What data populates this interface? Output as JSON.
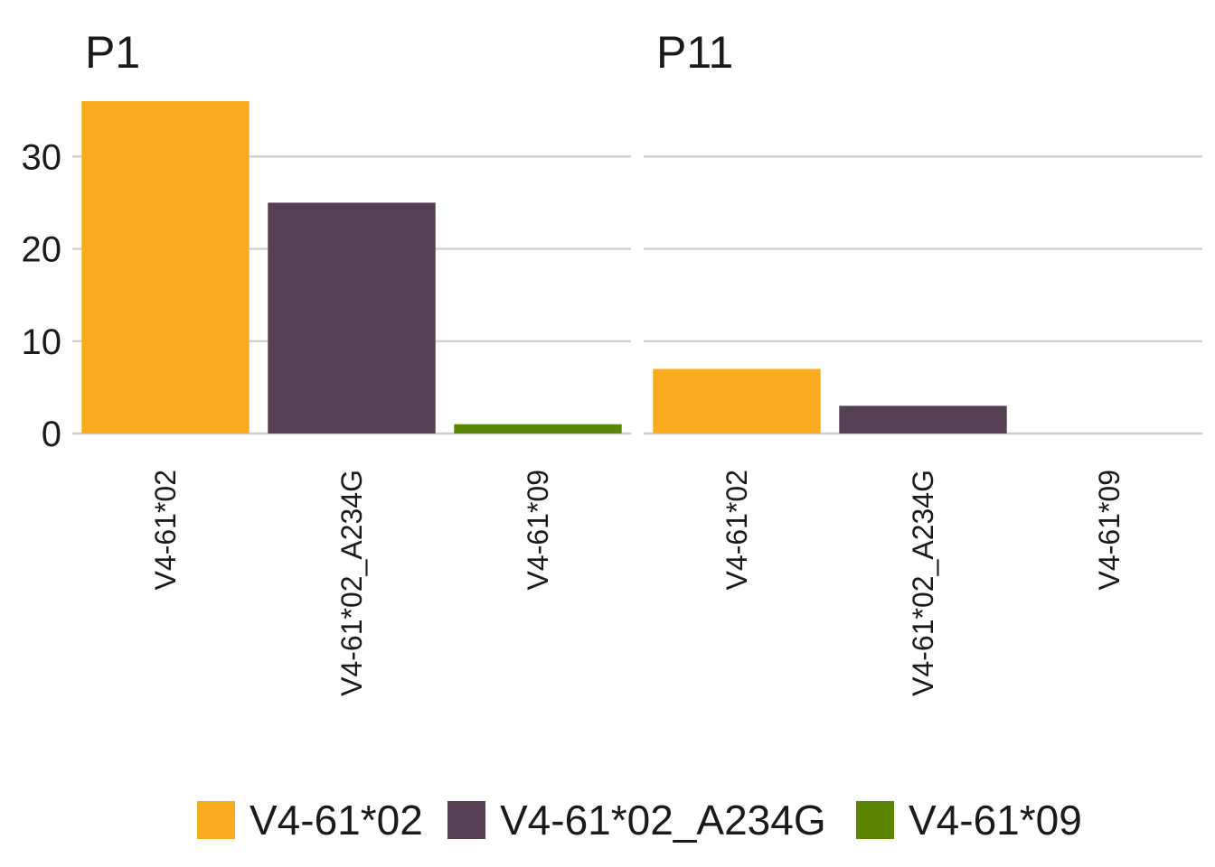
{
  "chart_data": {
    "type": "bar",
    "facet_by": "panel",
    "ylim": [
      0,
      36
    ],
    "y_ticks": [
      0,
      10,
      20,
      30
    ],
    "grid": "horizontal",
    "legend_position": "bottom",
    "categories": [
      "V4-61*02",
      "V4-61*02_A234G",
      "V4-61*09"
    ],
    "colors": {
      "V4-61*02": "#F8AB1C",
      "V4-61*02_A234G": "#553F52",
      "V4-61*09": "#5B8400"
    },
    "panels": [
      {
        "title": "P1",
        "values": [
          36,
          25,
          1
        ]
      },
      {
        "title": "P11",
        "values": [
          7,
          3,
          0
        ]
      }
    ],
    "legend": [
      "V4-61*02",
      "V4-61*02_A234G",
      "V4-61*09"
    ]
  }
}
